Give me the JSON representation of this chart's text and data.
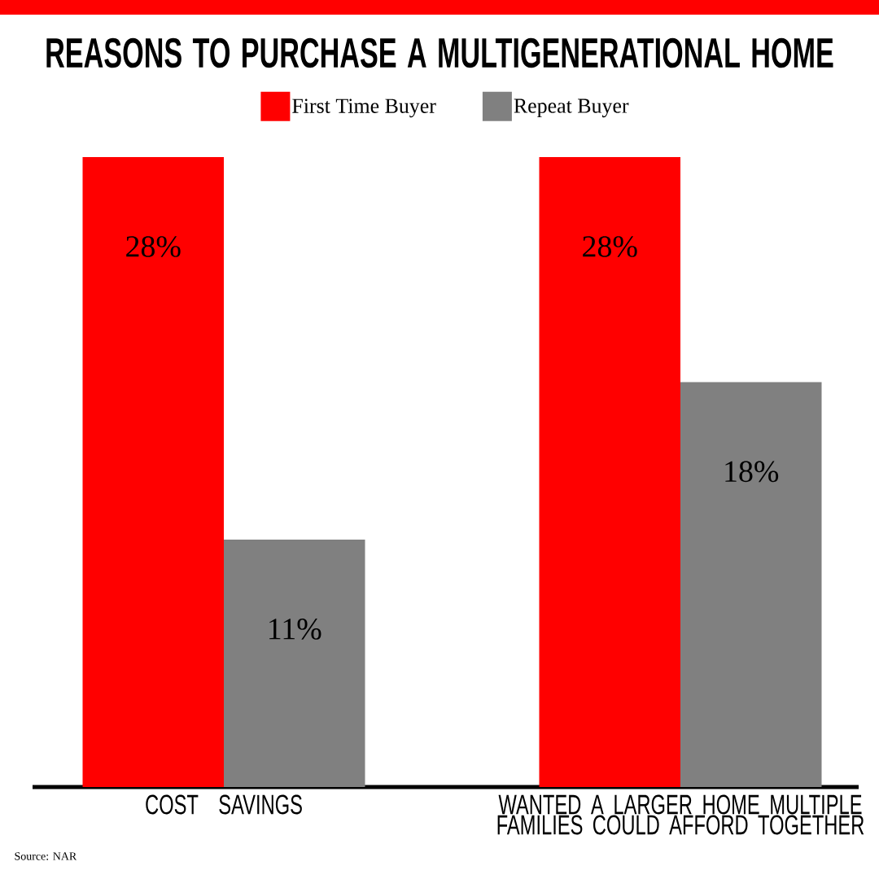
{
  "chart_data": {
    "type": "bar",
    "title": "REASONS TO PURCHASE A MULTIGENERATIONAL HOME",
    "categories": [
      "COST SAVINGS",
      "WANTED A LARGER HOME MULTIPLE FAMILIES COULD AFFORD TOGETHER"
    ],
    "series": [
      {
        "name": "First Time Buyer",
        "color": "#ff0000",
        "values": [
          28,
          28
        ],
        "value_labels": [
          "28%",
          "28%"
        ]
      },
      {
        "name": "Repeat Buyer",
        "color": "#808080",
        "values": [
          11,
          18
        ],
        "value_labels": [
          "11%",
          "18%"
        ]
      }
    ],
    "legend": "top",
    "annotations": [
      "Source: NAR"
    ]
  }
}
